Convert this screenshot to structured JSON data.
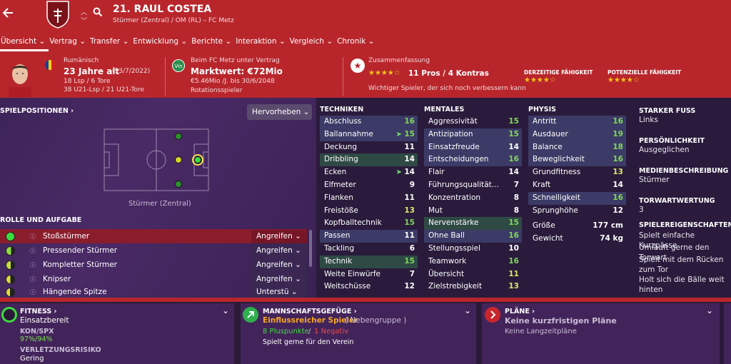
{
  "header": {
    "name": "21. RAUL COSTEA",
    "subtitle": "Stürmer (Zentral) / OM (RL) – FC Metz",
    "club_badge": "FC Metz"
  },
  "tabs": [
    "Übersicht ⌄",
    "Vertrag ⌄",
    "Transfer ⌄",
    "Entwicklung ⌄",
    "Berichte ⌄",
    "Interaktion ⌄",
    "Vergleich ⌄",
    "Chronik ⌄"
  ],
  "info": {
    "nationality": "Rumänisch",
    "age": "23 Jahre alt",
    "dob": "(13/7/2022)",
    "apps": "18 Lsp / 6 Tore",
    "u21": "38 U21-Lsp / 21 U21-Tore",
    "contract_label": "Beim FC Metz unter Vertrag",
    "value": "Marktwert: €72Mio",
    "wage": "€5.46Mio /J. bis 30/6/2048",
    "status": "Rotationsspieler",
    "vin": "Vin",
    "summary_label": "Zusammenfassung",
    "summary_stars": "★★★★☆",
    "pros": "11 Pros / 4 Kontras",
    "summary_text": "Wichtiger Spieler, der sich noch verbessern kann",
    "ca_label": "DERZEITIGE FÄHIGKEIT",
    "ca_stars": "★★★★☆",
    "pa_label": "POTENZIELLE FÄHIGKEIT",
    "pa_stars": "★★★★☆"
  },
  "positions": {
    "title": "SPIELPOSITIONEN ›",
    "highlight": "Hervorheben ⌄",
    "position": "Stürmer (Zentral)"
  },
  "roles": {
    "title": "ROLLE UND AUFGABE",
    "items": [
      {
        "name": "Stoßstürmer",
        "duty": "Angreifen ⌄",
        "color": "#3ddc3d"
      },
      {
        "name": "Pressender Stürmer",
        "duty": "Angreifen ⌄",
        "color": "#8fdc3d"
      },
      {
        "name": "Kompletter Stürmer",
        "duty": "Angreifen ⌄",
        "color": "#c8dc3d"
      },
      {
        "name": "Knipser",
        "duty": "Angreifen ⌄",
        "color": "#dcdc3d"
      },
      {
        "name": "Hängende Spitze",
        "duty": "Unterstü ⌄",
        "color": "#dcdc3d"
      }
    ]
  },
  "technical": {
    "title": "TECHNIKEN",
    "rows": [
      [
        "Abschluss",
        "16"
      ],
      [
        "Ballannahme",
        "15"
      ],
      [
        "Deckung",
        "11"
      ],
      [
        "Dribbling",
        "14"
      ],
      [
        "Ecken",
        "14"
      ],
      [
        "Elfmeter",
        "9"
      ],
      [
        "Flanken",
        "11"
      ],
      [
        "Freistöße",
        "13"
      ],
      [
        "Kopfballtechnik",
        "15"
      ],
      [
        "Passen",
        "11"
      ],
      [
        "Tackling",
        "6"
      ],
      [
        "Technik",
        "15"
      ],
      [
        "Weite Einwürfe",
        "7"
      ],
      [
        "Weitschüsse",
        "12"
      ]
    ]
  },
  "mental": {
    "title": "MENTALES",
    "rows": [
      [
        "Aggressivität",
        "15"
      ],
      [
        "Antizipation",
        "15"
      ],
      [
        "Einsatzfreude",
        "14"
      ],
      [
        "Entscheidungen",
        "16"
      ],
      [
        "Flair",
        "14"
      ],
      [
        "Führungsqualität...",
        "7"
      ],
      [
        "Konzentration",
        "8"
      ],
      [
        "Mut",
        "8"
      ],
      [
        "Nervenstärke",
        "15"
      ],
      [
        "Ohne Ball",
        "16"
      ],
      [
        "Stellungsspiel",
        "10"
      ],
      [
        "Teamwork",
        "16"
      ],
      [
        "Übersicht",
        "11"
      ],
      [
        "Zielstrebigkeit",
        "13"
      ]
    ]
  },
  "physical": {
    "title": "PHYSIS",
    "rows": [
      [
        "Antritt",
        "16"
      ],
      [
        "Ausdauer",
        "19"
      ],
      [
        "Balance",
        "18"
      ],
      [
        "Beweglichkeit",
        "16"
      ],
      [
        "Grundfitness",
        "13"
      ],
      [
        "Kraft",
        "14"
      ],
      [
        "Schnelligkeit",
        "16"
      ],
      [
        "Sprunghöhe",
        "12"
      ]
    ],
    "height_label": "Größe",
    "height": "177 cm",
    "weight_label": "Gewicht",
    "weight": "74 kg"
  },
  "right": {
    "foot_label": "STARKER FUSS",
    "foot": "Links",
    "pers_label": "PERSÖNLICHKEIT",
    "pers": "Ausgeglichen",
    "media_label": "MEDIENBESCHREIBUNG",
    "media": "Stürmer",
    "gk_label": "TORWARTWERTUNG",
    "gk": "3",
    "traits_label": "SPIELEREIGENSCHAFTEN",
    "traits": [
      "Spielt einfache Kurzpässe",
      "Umläuft gerne den Torwart",
      "Spielt mit dem Rücken zum Tor",
      "Holt sich die Bälle weit hinten"
    ]
  },
  "fitness": {
    "title": "FITNESS ›",
    "status": "Einsatzbereit",
    "kon_label": "KON/SPX",
    "kon": "97%/94%",
    "risk_label": "VERLETZUNGSRISIKO",
    "risk": "Gering"
  },
  "team": {
    "title": "MANNSCHAFTSGEFÜGE ›",
    "role": "Einflussreicher Spieler",
    "group": "( Nebengruppe )",
    "plus": "8 Pluspunkte",
    "sep": "/",
    "minus": "1 Negativ",
    "text": "Spielt gerne für den Verein"
  },
  "plans": {
    "title": "PLÄNE ›",
    "main": "Keine kurzfristigen Pläne",
    "sub": "Keine Langzeitpläne"
  }
}
